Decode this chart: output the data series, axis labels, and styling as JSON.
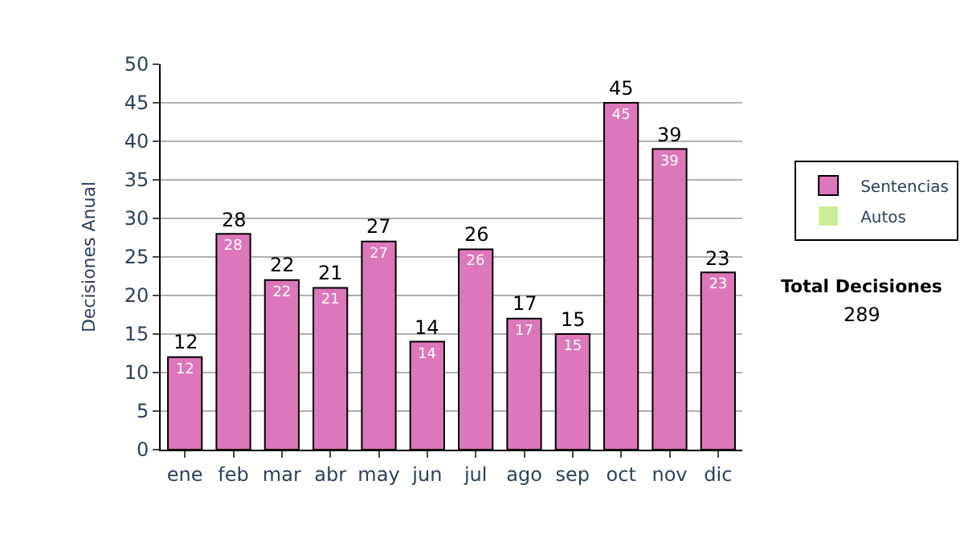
{
  "chart_data": {
    "type": "bar",
    "stacked": true,
    "ylabel": "Decisiones Anual",
    "categories": [
      "ene",
      "feb",
      "mar",
      "abr",
      "may",
      "jun",
      "jul",
      "ago",
      "sep",
      "oct",
      "nov",
      "dic"
    ],
    "series": [
      {
        "name": "Sentencias",
        "color": "#dd77bb",
        "values": [
          12,
          28,
          22,
          21,
          27,
          14,
          26,
          17,
          15,
          45,
          39,
          23
        ],
        "value_labels": [
          "12",
          "28",
          "22",
          "21",
          "27",
          "14",
          "26",
          "17",
          "15",
          "45",
          "39",
          "23"
        ]
      },
      {
        "name": "Autos",
        "color": "#ccee99",
        "values": [
          0,
          0,
          0,
          0,
          0,
          0,
          0,
          0,
          0,
          0,
          0,
          0
        ]
      }
    ],
    "totals": [
      "12",
      "28",
      "22",
      "21",
      "27",
      "14",
      "26",
      "17",
      "15",
      "45",
      "39",
      "23"
    ],
    "ylim": [
      0,
      50
    ],
    "yticks": [
      0,
      5,
      10,
      15,
      20,
      25,
      30,
      35,
      40,
      45,
      50
    ],
    "grid": "y",
    "legend": "right",
    "annotations": [
      "Total Decisiones",
      "289"
    ]
  }
}
